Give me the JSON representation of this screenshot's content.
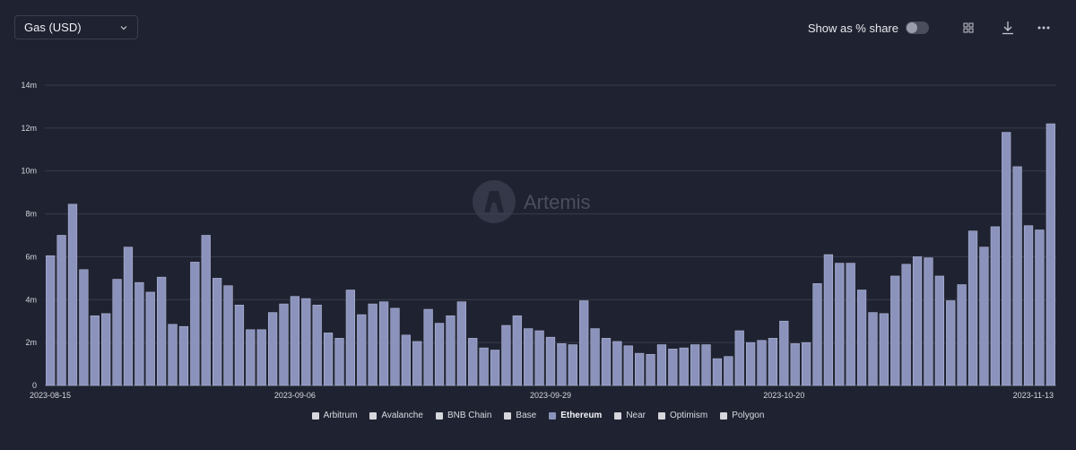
{
  "header": {
    "metric_select": "Gas (USD)",
    "share_label": "Show as % share",
    "share_enabled": false
  },
  "watermark": "Artemis",
  "colors": {
    "background": "#1f2230",
    "bar": "#8b93bd",
    "bar_stroke": "#b0b6d6",
    "grid": "#383c4c",
    "axis_text": "#d5d7df"
  },
  "legend": {
    "items": [
      {
        "label": "Arbitrum",
        "active": false
      },
      {
        "label": "Avalanche",
        "active": false
      },
      {
        "label": "BNB Chain",
        "active": false
      },
      {
        "label": "Base",
        "active": false
      },
      {
        "label": "Ethereum",
        "active": true
      },
      {
        "label": "Near",
        "active": false
      },
      {
        "label": "Optimism",
        "active": false
      },
      {
        "label": "Polygon",
        "active": false
      }
    ]
  },
  "chart_data": {
    "type": "bar",
    "start_label": "2023-08-15",
    "x_tick_labels": [
      {
        "label": "2023-08-15",
        "index": 0
      },
      {
        "label": "2023-09-06",
        "index": 22
      },
      {
        "label": "2023-09-29",
        "index": 45
      },
      {
        "label": "2023-10-20",
        "index": 66
      },
      {
        "label": "2023-11-13",
        "index": 90
      }
    ],
    "y_ticks": [
      "0",
      "2m",
      "4m",
      "6m",
      "8m",
      "10m",
      "12m",
      "14m"
    ],
    "ylim": [
      0,
      14
    ],
    "y_unit": "m",
    "grid": true,
    "legend_position": "bottom-center",
    "series": [
      {
        "name": "Ethereum",
        "values": [
          6.05,
          7.0,
          8.45,
          5.4,
          3.25,
          3.35,
          4.95,
          6.45,
          4.8,
          4.35,
          5.05,
          2.85,
          2.75,
          5.75,
          7.0,
          5.0,
          4.65,
          3.75,
          2.6,
          2.6,
          3.4,
          3.8,
          4.15,
          4.05,
          3.75,
          2.45,
          2.2,
          4.45,
          3.3,
          3.8,
          3.9,
          3.6,
          2.35,
          2.05,
          3.55,
          2.9,
          3.25,
          3.9,
          2.2,
          1.75,
          1.65,
          2.8,
          3.25,
          2.65,
          2.55,
          2.25,
          1.95,
          1.9,
          3.95,
          2.65,
          2.2,
          2.05,
          1.85,
          1.5,
          1.45,
          1.9,
          1.7,
          1.75,
          1.9,
          1.9,
          1.25,
          1.35,
          2.55,
          2.0,
          2.1,
          2.2,
          3.0,
          1.95,
          2.0,
          4.75,
          6.1,
          5.7,
          5.7,
          4.45,
          3.4,
          3.35,
          5.1,
          5.65,
          6.0,
          5.95,
          5.1,
          3.95,
          4.7,
          7.2,
          6.45,
          7.4,
          11.8,
          10.2,
          7.45,
          7.25,
          12.2
        ]
      }
    ]
  }
}
